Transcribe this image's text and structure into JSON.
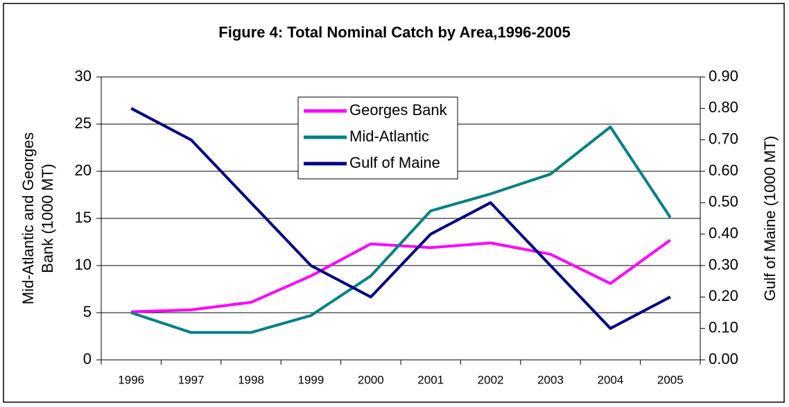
{
  "chart_data": {
    "type": "line",
    "title": "Figure 4: Total Nominal Catch by Area,1996-2005",
    "ylabel": [
      "Mid-Atlantic and Georges",
      "Bank (1000 MT)"
    ],
    "y2label": "Gulf of Maine (1000 MT)",
    "categories": [
      "1996",
      "1997",
      "1998",
      "1999",
      "2000",
      "2001",
      "2002",
      "2003",
      "2004",
      "2005"
    ],
    "series": [
      {
        "name": "Georges Bank",
        "color": "#ff00ff",
        "values": [
          5.1,
          5.3,
          6.1,
          8.9,
          12.3,
          11.9,
          12.4,
          11.2,
          8.1,
          12.7
        ]
      },
      {
        "name": "Mid-Atlantic",
        "color": "#008080",
        "values": [
          5.0,
          2.9,
          2.9,
          4.7,
          8.9,
          15.8,
          17.6,
          19.7,
          24.7,
          15.1
        ]
      },
      {
        "name": "Gulf of Maine",
        "color": "#000080",
        "axis": "y2",
        "values": [
          0.8,
          0.7,
          0.5,
          0.3,
          0.2,
          0.4,
          0.5,
          0.3,
          0.1,
          0.2
        ]
      }
    ],
    "ylim": [
      0,
      30
    ],
    "yticks": [
      0,
      5,
      10,
      15,
      20,
      25,
      30
    ],
    "y2lim": [
      0,
      0.9
    ],
    "y2ticks": [
      {
        "value": 0,
        "label": "0.00"
      },
      {
        "value": 0.1,
        "label": "0.10"
      },
      {
        "value": 0.2,
        "label": "0.20"
      },
      {
        "value": 0.3,
        "label": "0.30"
      },
      {
        "value": 0.4,
        "label": "0.40"
      },
      {
        "value": 0.5,
        "label": "0.50"
      },
      {
        "value": 0.6,
        "label": "0.60"
      },
      {
        "value": 0.7,
        "label": "0.70"
      },
      {
        "value": 0.8,
        "label": "0.80"
      },
      {
        "value": 0.9,
        "label": "0.90"
      }
    ],
    "grid": true,
    "legend": "top-center"
  }
}
